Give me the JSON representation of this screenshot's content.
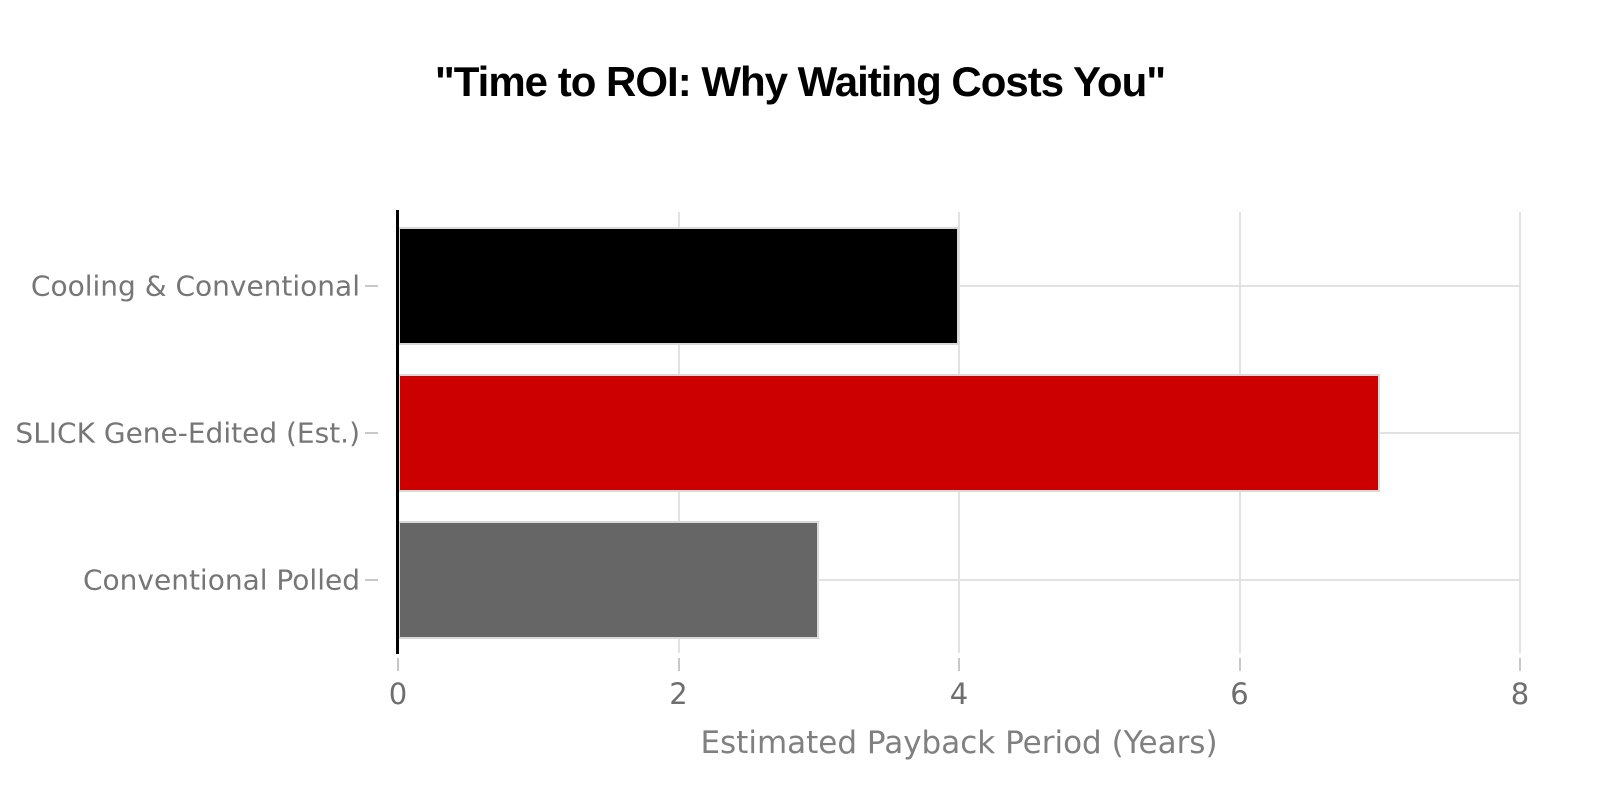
{
  "page": {
    "background": "#ffffff"
  },
  "chart_data": {
    "type": "bar",
    "orientation": "horizontal",
    "title": "\"Time to ROI: Why Waiting Costs You\"",
    "xlabel": "Estimated Payback Period (Years)",
    "ylabel": "",
    "categories": [
      "Cooling & Conventional",
      "SLICK Gene-Edited (Est.)",
      "Conventional Polled"
    ],
    "values": [
      4,
      7,
      3
    ],
    "bar_colors": [
      "#000000",
      "#cc0000",
      "#666666"
    ],
    "xlim": [
      0,
      8
    ],
    "xticks": [
      0,
      2,
      4,
      6,
      8
    ],
    "grid": true,
    "legend": false,
    "colors": {
      "gridline": "#e2e2e2",
      "bar_edge": "#d9d9d9",
      "axis_spine": "#000000",
      "tick_mark": "#c8c8c8",
      "tick_label_text": "#6e6e6e",
      "category_label_text": "#767676",
      "axis_label_text": "#808080",
      "title_text": "#000000"
    }
  }
}
